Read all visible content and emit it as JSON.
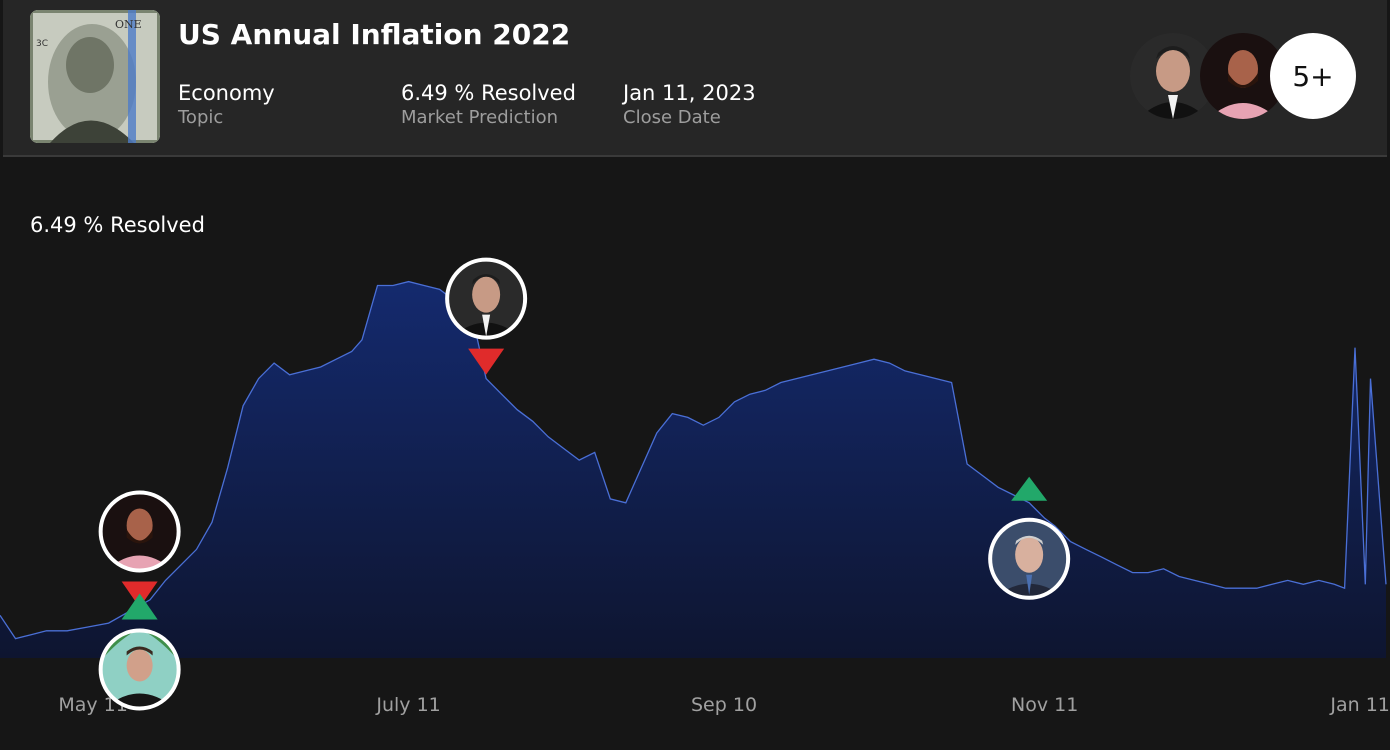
{
  "market": {
    "title": "US Annual Inflation 2022",
    "topic_value": "Economy",
    "topic_label": "Topic",
    "prediction_value": "6.49 %  Resolved",
    "prediction_label": "Market Prediction",
    "close_value": "Jan 11, 2023",
    "close_label": "Close Date",
    "participants_more": "5+",
    "thumbnail_icon": "hundred-dollar-bill-image"
  },
  "colors": {
    "area_top": "#142a6e",
    "area_bottom": "#0e1530",
    "line": "#4a6fd6",
    "buy": "#22a86a",
    "sell": "#e02b2b"
  },
  "chart_data": {
    "type": "area",
    "title": "6.49 %  Resolved",
    "xlabel": "",
    "ylabel": "",
    "x_ticks": [
      "May 11",
      "July 11",
      "Sep 10",
      "Nov 11",
      "Jan 11"
    ],
    "x_range": [
      "2022-04-23",
      "2023-01-16"
    ],
    "y_range": [
      0,
      100
    ],
    "grid": false,
    "series": [
      {
        "x": [
          "2022-04-23",
          "2022-04-26",
          "2022-04-29",
          "2022-05-02",
          "2022-05-06",
          "2022-05-10",
          "2022-05-14",
          "2022-05-18",
          "2022-05-22",
          "2022-05-25",
          "2022-05-28",
          "2022-05-31",
          "2022-06-03",
          "2022-06-06",
          "2022-06-09",
          "2022-06-12",
          "2022-06-15",
          "2022-06-18",
          "2022-06-21",
          "2022-06-24",
          "2022-06-27",
          "2022-06-30",
          "2022-07-02",
          "2022-07-05",
          "2022-07-08",
          "2022-07-11",
          "2022-07-14",
          "2022-07-17",
          "2022-07-20",
          "2022-07-23",
          "2022-07-26",
          "2022-07-29",
          "2022-08-01",
          "2022-08-04",
          "2022-08-07",
          "2022-08-10",
          "2022-08-13",
          "2022-08-16",
          "2022-08-19",
          "2022-08-22",
          "2022-08-25",
          "2022-08-28",
          "2022-08-31",
          "2022-09-03",
          "2022-09-06",
          "2022-09-09",
          "2022-09-12",
          "2022-09-15",
          "2022-09-18",
          "2022-09-21",
          "2022-09-24",
          "2022-09-27",
          "2022-09-30",
          "2022-10-03",
          "2022-10-06",
          "2022-10-09",
          "2022-10-12",
          "2022-10-15",
          "2022-10-18",
          "2022-10-21",
          "2022-10-24",
          "2022-10-27",
          "2022-10-30",
          "2022-11-02",
          "2022-11-05",
          "2022-11-08",
          "2022-11-11",
          "2022-11-13",
          "2022-11-16",
          "2022-11-19",
          "2022-11-22",
          "2022-11-25",
          "2022-11-28",
          "2022-12-01",
          "2022-12-04",
          "2022-12-07",
          "2022-12-10",
          "2022-12-13",
          "2022-12-16",
          "2022-12-19",
          "2022-12-22",
          "2022-12-25",
          "2022-12-28",
          "2022-12-31",
          "2023-01-03",
          "2023-01-06",
          "2023-01-08",
          "2023-01-10",
          "2023-01-12",
          "2023-01-13",
          "2023-01-16"
        ],
        "y": [
          11,
          5,
          6,
          7,
          7,
          8,
          9,
          12,
          15,
          20,
          24,
          28,
          35,
          49,
          65,
          72,
          76,
          73,
          74,
          75,
          77,
          79,
          82,
          96,
          96,
          97,
          96,
          95,
          92,
          90,
          72,
          68,
          64,
          61,
          57,
          54,
          51,
          53,
          41,
          40,
          49,
          58,
          63,
          62,
          60,
          62,
          66,
          68,
          69,
          71,
          72,
          73,
          74,
          75,
          76,
          77,
          76,
          74,
          73,
          72,
          71,
          50,
          47,
          44,
          42,
          40,
          36,
          34,
          30,
          28,
          26,
          24,
          22,
          22,
          23,
          21,
          20,
          19,
          18,
          18,
          18,
          19,
          20,
          19,
          20,
          19,
          18,
          80,
          19,
          72,
          19
        ]
      }
    ],
    "annotations": [
      {
        "date": "2022-05-20",
        "action": "sell",
        "avatar": "man-beard-pink-shirt-avatar"
      },
      {
        "date": "2022-05-20",
        "action": "buy",
        "avatar": "man-black-shirt-palm-trees-avatar"
      },
      {
        "date": "2022-07-26",
        "action": "sell",
        "avatar": "man-dark-suit-avatar"
      },
      {
        "date": "2022-11-08",
        "action": "buy",
        "avatar": "man-grey-hair-tie-avatar"
      }
    ]
  }
}
